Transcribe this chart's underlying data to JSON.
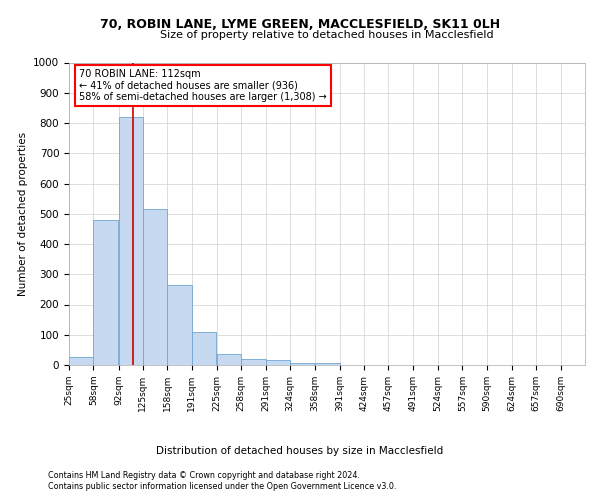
{
  "title": "70, ROBIN LANE, LYME GREEN, MACCLESFIELD, SK11 0LH",
  "subtitle": "Size of property relative to detached houses in Macclesfield",
  "xlabel": "Distribution of detached houses by size in Macclesfield",
  "ylabel": "Number of detached properties",
  "footnote1": "Contains HM Land Registry data © Crown copyright and database right 2024.",
  "footnote2": "Contains public sector information licensed under the Open Government Licence v3.0.",
  "annotation_line1": "70 ROBIN LANE: 112sqm",
  "annotation_line2": "← 41% of detached houses are smaller (936)",
  "annotation_line3": "58% of semi-detached houses are larger (1,308) →",
  "bar_color": "#c6d9f0",
  "bar_edge_color": "#6ea6d0",
  "vline_color": "#cc0000",
  "vline_x": 112,
  "categories": [
    "25sqm",
    "58sqm",
    "92sqm",
    "125sqm",
    "158sqm",
    "191sqm",
    "225sqm",
    "258sqm",
    "291sqm",
    "324sqm",
    "358sqm",
    "391sqm",
    "424sqm",
    "457sqm",
    "491sqm",
    "524sqm",
    "557sqm",
    "590sqm",
    "624sqm",
    "657sqm",
    "690sqm"
  ],
  "bin_edges": [
    25,
    58,
    92,
    125,
    158,
    191,
    225,
    258,
    291,
    324,
    358,
    391,
    424,
    457,
    491,
    524,
    557,
    590,
    624,
    657,
    690
  ],
  "bin_width": 33,
  "heights": [
    27,
    480,
    820,
    515,
    265,
    108,
    37,
    20,
    15,
    8,
    5,
    0,
    0,
    0,
    0,
    0,
    0,
    0,
    0,
    0,
    0
  ],
  "ylim": [
    0,
    1000
  ],
  "yticks": [
    0,
    100,
    200,
    300,
    400,
    500,
    600,
    700,
    800,
    900,
    1000
  ],
  "background_color": "#ffffff",
  "grid_color": "#d0d0d0"
}
